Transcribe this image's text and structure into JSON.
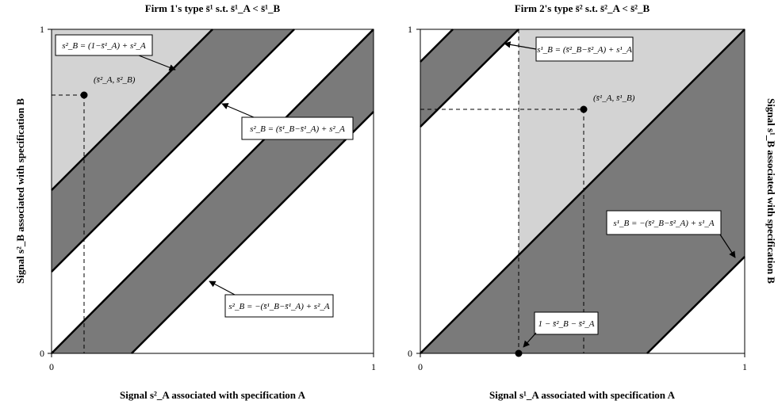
{
  "left_panel": {
    "title": "Firm 1's type s̄¹ s.t. s̄¹_A < s̄¹_B",
    "xlabel": "Signal s²_A associated with specification A",
    "ylabel": "Signal s²_B associated with specification B",
    "ticks": {
      "x0": "0",
      "x1": "1",
      "y0": "0",
      "y1": "1"
    },
    "point_label": "(s̄²_A, s̄²_B)",
    "annotations": [
      "s²_B = (1−s̄¹_A) + s²_A",
      "s²_B = (s̄¹_B−s̄¹_A) + s²_A",
      "s²_B = −(s̄¹_B−s̄¹_A) + s²_A"
    ]
  },
  "right_panel": {
    "title": "Firm 2's type s̄² s.t. s̄²_A < s̄²_B",
    "xlabel": "Signal s¹_A associated with specification A",
    "ylabel": "Signal s¹_B associated with specification B",
    "ticks": {
      "x0": "0",
      "x1": "1",
      "y0": "0",
      "y1": "1"
    },
    "point_label": "(s̄¹_A, s̄¹_B)",
    "annotations": [
      "s¹_B = (s̄²_B−s̄²_A) + s¹_A",
      "s¹_B = −(s̄²_B−s̄²_A) + s¹_A",
      "1 − s̄²_B − s̄²_A"
    ]
  },
  "colors": {
    "dark": "#7a7a7a",
    "light": "#d3d3d3",
    "line": "#000000"
  }
}
